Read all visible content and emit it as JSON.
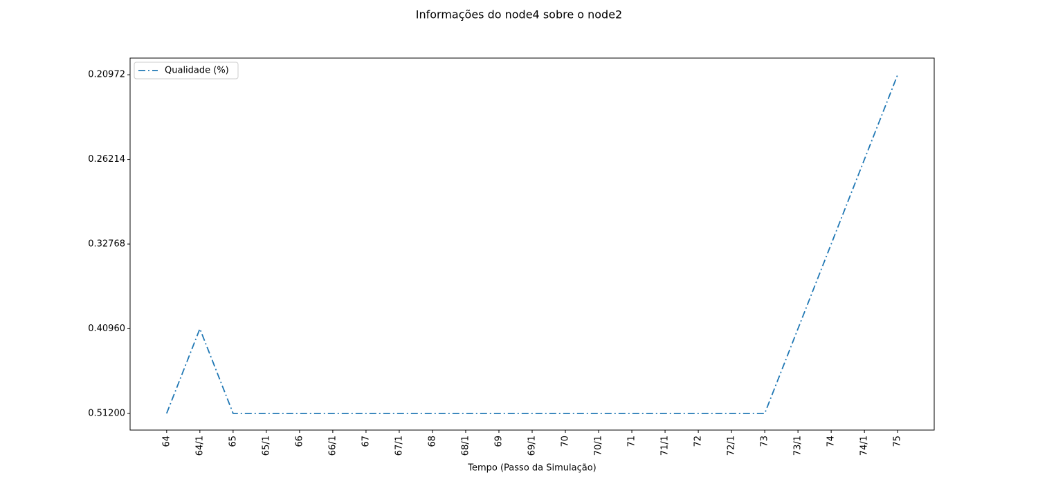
{
  "chart_data": {
    "type": "line",
    "title": "Informações do node4 sobre o node2",
    "xlabel": "Tempo (Passo da Simulação)",
    "categories": [
      "64",
      "64/1",
      "65",
      "65/1",
      "66",
      "66/1",
      "67",
      "67/1",
      "68",
      "68/1",
      "69",
      "69/1",
      "70",
      "70/1",
      "71",
      "71/1",
      "72",
      "72/1",
      "73",
      "73/1",
      "74",
      "74/1",
      "75"
    ],
    "series": [
      {
        "name": "Qualidade (%)",
        "color": "#1f77b4",
        "values": [
          0.512,
          0.4096,
          0.512,
          0.512,
          0.512,
          0.512,
          0.512,
          0.512,
          0.512,
          0.512,
          0.512,
          0.512,
          0.512,
          0.512,
          0.512,
          0.512,
          0.512,
          0.512,
          0.512,
          0.4096,
          0.32768,
          0.262144,
          0.2097152
        ]
      }
    ],
    "yscale": "log",
    "ylim": [
      0.535,
      0.2007
    ],
    "yticks": [
      {
        "value": 0.512,
        "label": "0.51200"
      },
      {
        "value": 0.4096,
        "label": "0.40960"
      },
      {
        "value": 0.32768,
        "label": "0.32768"
      },
      {
        "value": 0.262144,
        "label": "0.26214"
      },
      {
        "value": 0.2097152,
        "label": "0.20972"
      }
    ],
    "legend": "upper left",
    "linestyle": "dashdot"
  }
}
